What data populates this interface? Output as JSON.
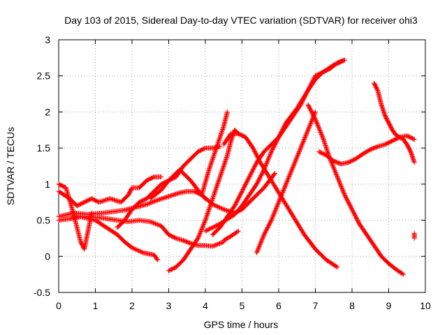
{
  "chart_data": {
    "type": "scatter",
    "title": "Day 103 of 2015, Sidereal Day-to-day VTEC variation (SDTVAR) for receiver ohi3",
    "xlabel": "GPS time / hours",
    "ylabel": "SDTVAR / TECUs",
    "xlim": [
      0,
      10
    ],
    "ylim": [
      -0.5,
      3
    ],
    "xticks": [
      0,
      1,
      2,
      3,
      4,
      5,
      6,
      7,
      8,
      9,
      10
    ],
    "xtick_labels": [
      "0",
      "1",
      "2",
      "3",
      "4",
      "5",
      "6",
      "7",
      "8",
      "9",
      "10"
    ],
    "yticks": [
      -0.5,
      0,
      0.5,
      1,
      1.5,
      2,
      2.5,
      3
    ],
    "ytick_labels": [
      "-0.5",
      "0",
      "0.5",
      "1",
      "1.5",
      "2",
      "2.5",
      "3"
    ],
    "grid": true,
    "legend": "none",
    "marker": "plus",
    "color": "#ff0000",
    "series": [
      {
        "name": "s1",
        "x": [
          0.0,
          0.3,
          0.5,
          0.7,
          0.9,
          1.1,
          1.4,
          1.7,
          1.9,
          2.0,
          2.2,
          2.4,
          2.6,
          2.8
        ],
        "y": [
          0.9,
          0.8,
          0.7,
          0.75,
          0.8,
          0.75,
          0.8,
          0.75,
          0.85,
          0.95,
          0.95,
          1.05,
          1.1,
          1.1
        ]
      },
      {
        "name": "s2",
        "x": [
          0.0,
          0.2,
          0.4,
          0.6,
          0.7,
          0.8,
          0.9
        ],
        "y": [
          1.0,
          0.95,
          0.6,
          0.2,
          0.1,
          0.35,
          0.6
        ]
      },
      {
        "name": "s3",
        "x": [
          0.0,
          0.3,
          0.6,
          1.0,
          1.3,
          1.6,
          1.8,
          2.0,
          2.3,
          2.6,
          2.7
        ],
        "y": [
          0.5,
          0.52,
          0.55,
          0.5,
          0.4,
          0.3,
          0.2,
          0.12,
          0.05,
          0.02,
          -0.05
        ]
      },
      {
        "name": "s4",
        "x": [
          0.0,
          0.4,
          0.8,
          1.2,
          1.5,
          1.8,
          2.1,
          2.4,
          2.7,
          3.0,
          3.3,
          3.5,
          3.7,
          3.9,
          4.0
        ],
        "y": [
          0.55,
          0.6,
          0.58,
          0.6,
          0.62,
          0.64,
          0.68,
          0.72,
          0.78,
          0.83,
          0.88,
          0.9,
          0.9,
          0.85,
          0.8
        ]
      },
      {
        "name": "s5",
        "x": [
          0.4,
          0.8,
          1.2,
          1.6,
          1.9,
          2.2,
          2.5,
          2.8,
          3.0,
          3.2,
          3.4,
          3.6,
          3.8,
          4.0,
          4.2,
          4.5
        ],
        "y": [
          0.55,
          0.55,
          0.53,
          0.5,
          0.48,
          0.5,
          0.48,
          0.42,
          0.3,
          0.25,
          0.22,
          0.18,
          0.15,
          0.15,
          0.14,
          0.2
        ]
      },
      {
        "name": "s6",
        "x": [
          4.5,
          4.7,
          4.9
        ],
        "y": [
          0.22,
          0.28,
          0.35
        ]
      },
      {
        "name": "s7",
        "x": [
          1.6,
          1.8,
          2.0,
          2.2,
          2.4,
          2.6,
          2.8,
          3.0,
          3.2,
          3.4,
          3.6,
          3.8,
          4.0,
          4.2,
          4.4
        ],
        "y": [
          0.4,
          0.5,
          0.65,
          0.75,
          0.8,
          0.9,
          1.0,
          1.05,
          1.1,
          1.25,
          1.35,
          1.45,
          1.5,
          1.5,
          1.52
        ]
      },
      {
        "name": "s8",
        "x": [
          3.0,
          3.2,
          3.4,
          3.6,
          3.8,
          4.0,
          4.2,
          4.4,
          4.6,
          4.7,
          4.8,
          4.9
        ],
        "y": [
          -0.2,
          -0.15,
          -0.05,
          0.1,
          0.25,
          0.5,
          0.8,
          1.1,
          1.4,
          1.6,
          1.75,
          1.7
        ]
      },
      {
        "name": "s9",
        "x": [
          3.9,
          4.1,
          4.3,
          4.5,
          4.6
        ],
        "y": [
          0.85,
          1.2,
          1.5,
          1.8,
          2.0
        ]
      },
      {
        "name": "s10",
        "x": [
          4.0,
          4.4,
          4.8,
          5.0,
          5.2,
          5.4,
          5.6,
          5.8,
          6.0,
          6.2,
          6.5,
          6.8,
          7.0,
          7.2,
          7.5,
          7.8
        ],
        "y": [
          0.35,
          0.45,
          0.58,
          0.7,
          0.85,
          1.0,
          1.2,
          1.45,
          1.65,
          1.85,
          2.05,
          2.3,
          2.5,
          2.55,
          2.65,
          2.72
        ]
      },
      {
        "name": "s11",
        "x": [
          2.5,
          2.8,
          3.0,
          3.3,
          3.6,
          3.9,
          4.2,
          4.5,
          4.8,
          5.0,
          5.3,
          5.6,
          5.9
        ],
        "y": [
          0.8,
          0.92,
          1.05,
          1.2,
          1.05,
          0.85,
          0.72,
          0.65,
          0.6,
          0.65,
          0.8,
          0.95,
          1.15
        ]
      },
      {
        "name": "s12",
        "x": [
          4.2,
          4.4,
          4.6,
          4.8,
          5.0,
          5.2,
          5.4,
          5.6,
          5.8,
          6.0,
          6.2,
          6.4,
          6.6,
          6.8,
          7.0,
          7.2,
          7.4,
          7.6,
          7.8
        ],
        "y": [
          0.3,
          0.4,
          0.55,
          0.7,
          0.9,
          1.1,
          1.3,
          1.45,
          1.55,
          1.65,
          1.8,
          1.95,
          2.1,
          2.3,
          2.45,
          2.55,
          2.6,
          2.68,
          2.72
        ]
      },
      {
        "name": "s13",
        "x": [
          4.5,
          4.7,
          4.9,
          5.1,
          5.3,
          5.5,
          5.8,
          6.1,
          6.4,
          6.7,
          7.0,
          7.3,
          7.6
        ],
        "y": [
          1.55,
          1.7,
          1.7,
          1.65,
          1.5,
          1.3,
          1.05,
          0.8,
          0.55,
          0.3,
          0.1,
          -0.05,
          -0.15
        ]
      },
      {
        "name": "s14",
        "x": [
          5.4,
          5.6,
          5.8,
          6.0,
          6.2,
          6.4,
          6.6,
          6.8,
          7.0
        ],
        "y": [
          0.05,
          0.3,
          0.5,
          0.75,
          1.0,
          1.25,
          1.5,
          1.75,
          2.0
        ]
      },
      {
        "name": "s15",
        "x": [
          6.8,
          7.0,
          7.2,
          7.4,
          7.6,
          7.8,
          8.0,
          8.2,
          8.4,
          8.6,
          8.8,
          9.0,
          9.2,
          9.4
        ],
        "y": [
          2.1,
          1.9,
          1.65,
          1.35,
          1.1,
          0.85,
          0.65,
          0.45,
          0.3,
          0.15,
          0.0,
          -0.1,
          -0.18,
          -0.25
        ]
      },
      {
        "name": "s16",
        "x": [
          7.1,
          7.3,
          7.5,
          7.7,
          7.9,
          8.1,
          8.3,
          8.5,
          8.7,
          8.9,
          9.1,
          9.3,
          9.5,
          9.7
        ],
        "y": [
          1.45,
          1.4,
          1.32,
          1.28,
          1.3,
          1.35,
          1.42,
          1.48,
          1.52,
          1.55,
          1.6,
          1.65,
          1.67,
          1.62
        ]
      },
      {
        "name": "s17",
        "x": [
          8.6,
          8.7,
          8.8,
          8.9,
          9.0,
          9.1,
          9.2,
          9.3,
          9.4,
          9.5,
          9.6,
          9.7
        ],
        "y": [
          2.4,
          2.3,
          2.1,
          1.95,
          1.85,
          1.75,
          1.68,
          1.65,
          1.62,
          1.55,
          1.45,
          1.3
        ]
      },
      {
        "name": "s18",
        "x": [
          9.7,
          9.7
        ],
        "y": [
          0.25,
          0.32
        ]
      }
    ]
  }
}
